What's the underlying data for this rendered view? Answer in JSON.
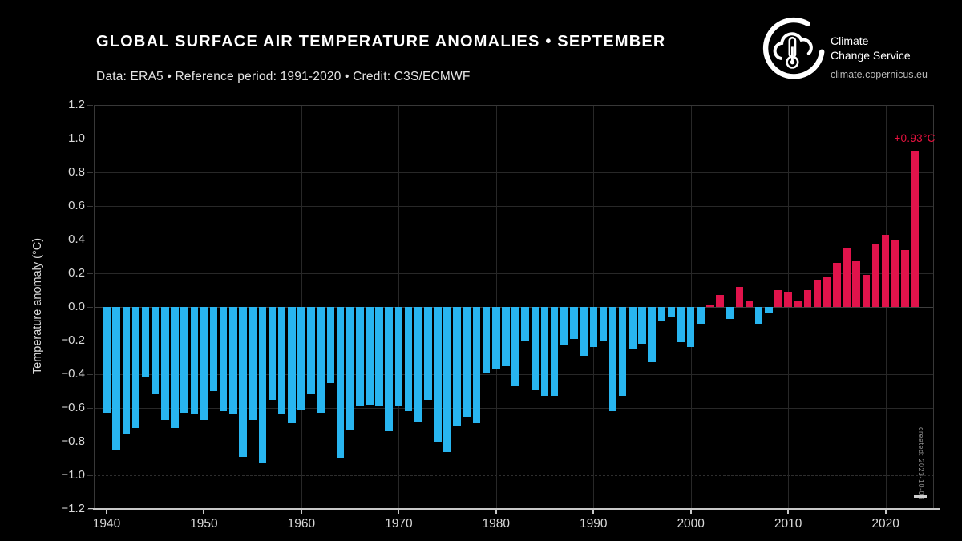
{
  "header": {
    "title": "GLOBAL SURFACE AIR TEMPERATURE ANOMALIES • SEPTEMBER",
    "subtitle": "Data: ERA5 • Reference period: 1991-2020 • Credit: C3S/ECMWF"
  },
  "logo": {
    "name_line1": "Climate",
    "name_line2": "Change Service",
    "url": "climate.copernicus.eu"
  },
  "annotation": {
    "label": "+0.93°C",
    "year": 2023
  },
  "footnote": "created: 2023-10-03",
  "colors": {
    "background": "#000000",
    "positive_bar": "#e0134b",
    "negative_bar": "#28b5f0",
    "annotation_text": "#e8123f"
  },
  "chart_data": {
    "type": "bar",
    "title": "GLOBAL SURFACE AIR TEMPERATURE ANOMALIES • SEPTEMBER",
    "xlabel": "",
    "ylabel": "Temperature anomaly (°C)",
    "ylim": [
      -1.2,
      1.2
    ],
    "grid": true,
    "legend": "none",
    "years": [
      1940,
      1941,
      1942,
      1943,
      1944,
      1945,
      1946,
      1947,
      1948,
      1949,
      1950,
      1951,
      1952,
      1953,
      1954,
      1955,
      1956,
      1957,
      1958,
      1959,
      1960,
      1961,
      1962,
      1963,
      1964,
      1965,
      1966,
      1967,
      1968,
      1969,
      1970,
      1971,
      1972,
      1973,
      1974,
      1975,
      1976,
      1977,
      1978,
      1979,
      1980,
      1981,
      1982,
      1983,
      1984,
      1985,
      1986,
      1987,
      1988,
      1989,
      1990,
      1991,
      1992,
      1993,
      1994,
      1995,
      1996,
      1997,
      1998,
      1999,
      2000,
      2001,
      2002,
      2003,
      2004,
      2005,
      2006,
      2007,
      2008,
      2009,
      2010,
      2011,
      2012,
      2013,
      2014,
      2015,
      2016,
      2017,
      2018,
      2019,
      2020,
      2021,
      2022,
      2023
    ],
    "values": [
      -0.63,
      -0.85,
      -0.75,
      -0.72,
      -0.42,
      -0.52,
      -0.67,
      -0.72,
      -0.63,
      -0.64,
      -0.67,
      -0.5,
      -0.62,
      -0.64,
      -0.89,
      -0.67,
      -0.93,
      -0.55,
      -0.64,
      -0.69,
      -0.61,
      -0.52,
      -0.63,
      -0.45,
      -0.9,
      -0.73,
      -0.59,
      -0.58,
      -0.59,
      -0.74,
      -0.59,
      -0.62,
      -0.68,
      -0.55,
      -0.8,
      -0.86,
      -0.71,
      -0.65,
      -0.69,
      -0.39,
      -0.37,
      -0.35,
      -0.47,
      -0.2,
      -0.49,
      -0.53,
      -0.53,
      -0.23,
      -0.19,
      -0.29,
      -0.24,
      -0.2,
      -0.62,
      -0.53,
      -0.25,
      -0.22,
      -0.33,
      -0.08,
      -0.06,
      -0.21,
      -0.24,
      -0.1,
      0.01,
      0.07,
      -0.07,
      0.12,
      0.04,
      -0.1,
      -0.04,
      0.1,
      0.09,
      0.04,
      0.1,
      0.16,
      0.18,
      0.26,
      0.35,
      0.27,
      0.19,
      0.37,
      0.43,
      0.4,
      0.34,
      0.93
    ],
    "yticks": [
      {
        "v": 1.2,
        "label": "1.2"
      },
      {
        "v": 1.0,
        "label": "1.0"
      },
      {
        "v": 0.8,
        "label": "0.8"
      },
      {
        "v": 0.6,
        "label": "0.6"
      },
      {
        "v": 0.4,
        "label": "0.4"
      },
      {
        "v": 0.2,
        "label": "0.2"
      },
      {
        "v": 0.0,
        "label": "0.0"
      },
      {
        "v": -0.2,
        "label": "−0.2"
      },
      {
        "v": -0.4,
        "label": "−0.4"
      },
      {
        "v": -0.6,
        "label": "−0.6"
      },
      {
        "v": -0.8,
        "label": "−0.8"
      },
      {
        "v": -1.0,
        "label": "−1.0"
      },
      {
        "v": -1.2,
        "label": "−1.2"
      }
    ],
    "xticks": [
      {
        "year": 1940,
        "label": "1940"
      },
      {
        "year": 1950,
        "label": "1950"
      },
      {
        "year": 1960,
        "label": "1960"
      },
      {
        "year": 1970,
        "label": "1970"
      },
      {
        "year": 1980,
        "label": "1980"
      },
      {
        "year": 1990,
        "label": "1990"
      },
      {
        "year": 2000,
        "label": "2000"
      },
      {
        "year": 2010,
        "label": "2010"
      },
      {
        "year": 2020,
        "label": "2020"
      }
    ]
  }
}
